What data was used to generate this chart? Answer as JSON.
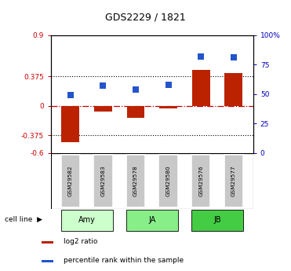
{
  "title": "GDS2229 / 1821",
  "samples": [
    "GSM29582",
    "GSM29583",
    "GSM29578",
    "GSM29580",
    "GSM29576",
    "GSM29577"
  ],
  "log2_ratio": [
    -0.46,
    -0.07,
    -0.15,
    -0.03,
    0.46,
    0.42
  ],
  "percentile_rank": [
    49,
    57,
    54,
    58,
    82,
    81
  ],
  "cell_lines": [
    {
      "label": "Amy",
      "start": 0,
      "end": 1,
      "color": "#ccffcc"
    },
    {
      "label": "JA",
      "start": 2,
      "end": 3,
      "color": "#88ee88"
    },
    {
      "label": "JB",
      "start": 4,
      "end": 5,
      "color": "#44cc44"
    }
  ],
  "ylim_left": [
    -0.6,
    0.9
  ],
  "ylim_right": [
    0,
    100
  ],
  "yticks_left": [
    -0.6,
    -0.375,
    0,
    0.375,
    0.9
  ],
  "ytick_labels_left": [
    "-0.6",
    "-0.375",
    "0",
    "0.375",
    "0.9"
  ],
  "yticks_right": [
    0,
    25,
    50,
    75,
    100
  ],
  "ytick_labels_right": [
    "0",
    "25",
    "50",
    "75",
    "100%"
  ],
  "bar_color": "#bb2200",
  "dot_color": "#2255cc",
  "hline_y": 0,
  "dotted_lines": [
    -0.375,
    0.375
  ],
  "bar_width": 0.55,
  "dot_size": 28,
  "gsm_box_color": "#c8c8c8",
  "cell_line_colors": [
    "#ccffcc",
    "#88ee88",
    "#44cc44"
  ]
}
